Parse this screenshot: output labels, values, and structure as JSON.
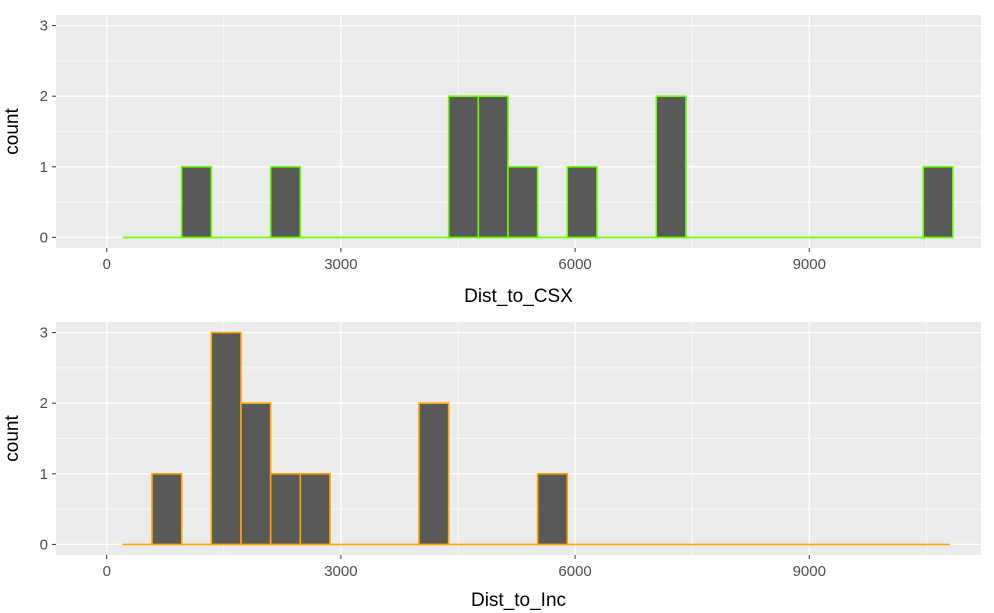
{
  "chart_data": [
    {
      "type": "bar",
      "subtype": "histogram",
      "xlabel": "Dist_to_CSX",
      "ylabel": "count",
      "xlim": [
        -650,
        11200
      ],
      "ylim": [
        -0.15,
        3.15
      ],
      "x_ticks": [
        0,
        3000,
        6000,
        9000
      ],
      "y_ticks": [
        0,
        1,
        2,
        3
      ],
      "grid": true,
      "bin_range": [
        200,
        10800
      ],
      "bar_fill": "#595959",
      "bar_outline": "#66ff00",
      "bins": [
        {
          "x0": 960,
          "x1": 1340,
          "count": 1
        },
        {
          "x0": 2100,
          "x1": 2480,
          "count": 1
        },
        {
          "x0": 4380,
          "x1": 4760,
          "count": 2
        },
        {
          "x0": 4760,
          "x1": 5140,
          "count": 2
        },
        {
          "x0": 5140,
          "x1": 5520,
          "count": 1
        },
        {
          "x0": 5900,
          "x1": 6280,
          "count": 1
        },
        {
          "x0": 7040,
          "x1": 7420,
          "count": 2
        },
        {
          "x0": 10460,
          "x1": 10840,
          "count": 1
        }
      ]
    },
    {
      "type": "bar",
      "subtype": "histogram",
      "xlabel": "Dist_to_Inc",
      "ylabel": "count",
      "xlim": [
        -650,
        11200
      ],
      "ylim": [
        -0.15,
        3.15
      ],
      "x_ticks": [
        0,
        3000,
        6000,
        9000
      ],
      "y_ticks": [
        0,
        1,
        2,
        3
      ],
      "grid": true,
      "bin_range": [
        200,
        10800
      ],
      "bar_fill": "#595959",
      "bar_outline": "#ffa500",
      "bins": [
        {
          "x0": 580,
          "x1": 960,
          "count": 1
        },
        {
          "x0": 1340,
          "x1": 1720,
          "count": 3
        },
        {
          "x0": 1720,
          "x1": 2100,
          "count": 2
        },
        {
          "x0": 2100,
          "x1": 2480,
          "count": 1
        },
        {
          "x0": 2480,
          "x1": 2860,
          "count": 1
        },
        {
          "x0": 4000,
          "x1": 4380,
          "count": 2
        },
        {
          "x0": 5520,
          "x1": 5900,
          "count": 1
        }
      ]
    }
  ]
}
